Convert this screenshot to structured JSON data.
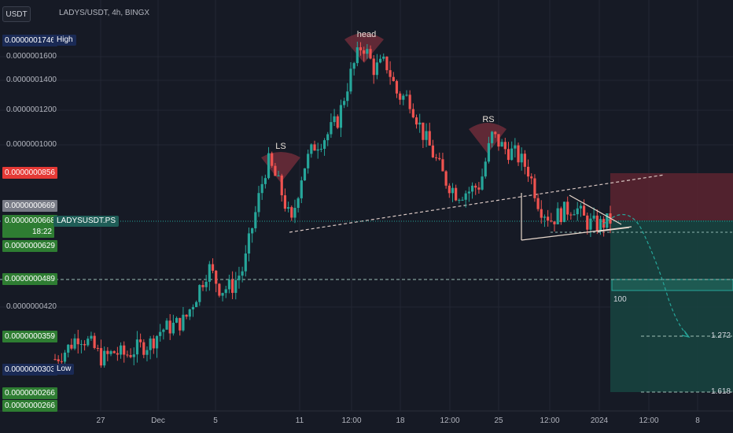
{
  "header": {
    "currency_badge": "USDT",
    "symbol_title": "LADYS/USDT, 4h, BINGX"
  },
  "colors": {
    "background": "#161a25",
    "up_candle": "#26a69a",
    "down_candle": "#ef5350",
    "red_label": "#e53935",
    "green_label": "#2e7d32",
    "navy_label": "#1a2a55",
    "gray_label": "#787b86"
  },
  "price_labels": {
    "high_value": "0.0000001746",
    "high_tag": "High",
    "red_value": "0.0000000856",
    "gray_value": "0.0000000669",
    "current_value": "0.0000000668",
    "countdown": "18:22",
    "current_tag": "LADYSUSDT.PS",
    "green1_value": "0.0000000629",
    "green2_value": "0.0000000489",
    "green3_value": "0.0000000359",
    "low_value": "0.0000000303",
    "low_tag": "Low",
    "green4_value": "0.0000000266",
    "green5_value": "0.0000000266"
  },
  "patterns": {
    "ls": "LS",
    "head": "head",
    "rs": "RS"
  },
  "fib_levels": {
    "level_100": "100",
    "level_1272": "1.272",
    "level_1618": "1.618"
  },
  "chart_data": {
    "type": "candlestick",
    "title": "LADYS/USDT, 4h, BINGX",
    "y_ticks": [
      "0.0000001600",
      "0.0000001400",
      "0.0000001200",
      "0.0000001000",
      "0.0000000420"
    ],
    "x_ticks": [
      "27",
      "Dec",
      "5",
      "11",
      "12:00",
      "18",
      "12:00",
      "25",
      "12:00",
      "2024",
      "12:00",
      "8"
    ],
    "key_levels": {
      "high": 1.746e-07,
      "low": 3.03e-08,
      "last": 6.68e-08
    },
    "price_path": [
      [
        3.6e-08,
        3.18e-08
      ],
      [
        0.045,
        3.35e-08
      ],
      [
        0.07,
        3.62e-08
      ],
      [
        0.12,
        3.45e-08
      ],
      [
        0.15,
        3.18e-08
      ],
      [
        0.2,
        3.3e-08
      ],
      [
        0.25,
        3.25e-08
      ],
      [
        0.3,
        3.38e-08
      ],
      [
        0.34,
        3.45e-08
      ],
      [
        0.38,
        3.72e-08
      ],
      [
        0.42,
        3.8e-08
      ],
      [
        0.47,
        3.92e-08
      ],
      [
        0.52,
        4.5e-08
      ],
      [
        0.56,
        5.2e-08
      ],
      [
        0.6,
        4.6e-08
      ],
      [
        0.64,
        4.7e-08
      ],
      [
        0.68,
        5.2e-08
      ],
      [
        0.72,
        7e-08
      ],
      [
        0.76,
        9.2e-08
      ],
      [
        0.8,
        8e-08
      ],
      [
        0.84,
        6.5e-08
      ],
      [
        0.88,
        8.8e-08
      ],
      [
        0.92,
        1e-07
      ],
      [
        0.96,
        1.05e-07
      ],
      [
        1.0,
        1.15e-07
      ],
      [
        1.04,
        1.45e-07
      ],
      [
        1.08,
        1.72e-07
      ],
      [
        1.12,
        1.5e-07
      ],
      [
        1.16,
        1.55e-07
      ],
      [
        1.2,
        1.3e-07
      ],
      [
        1.24,
        1.28e-07
      ],
      [
        1.28,
        1.08e-07
      ],
      [
        1.32,
        9.5e-08
      ],
      [
        1.36,
        8.3e-08
      ],
      [
        1.4,
        7.7e-08
      ],
      [
        1.44,
        7.8e-08
      ],
      [
        1.48,
        8.1e-08
      ],
      [
        1.52,
        1.05e-07
      ],
      [
        1.56,
        9.8e-08
      ],
      [
        1.6,
        9.5e-08
      ],
      [
        1.64,
        8.8e-08
      ],
      [
        1.68,
        7.2e-08
      ],
      [
        1.72,
        6.7e-08
      ],
      [
        1.76,
        7e-08
      ],
      [
        1.8,
        7.2e-08
      ],
      [
        1.84,
        6.6e-08
      ],
      [
        1.88,
        6.5e-08
      ],
      [
        1.92,
        6.68e-08
      ]
    ]
  }
}
